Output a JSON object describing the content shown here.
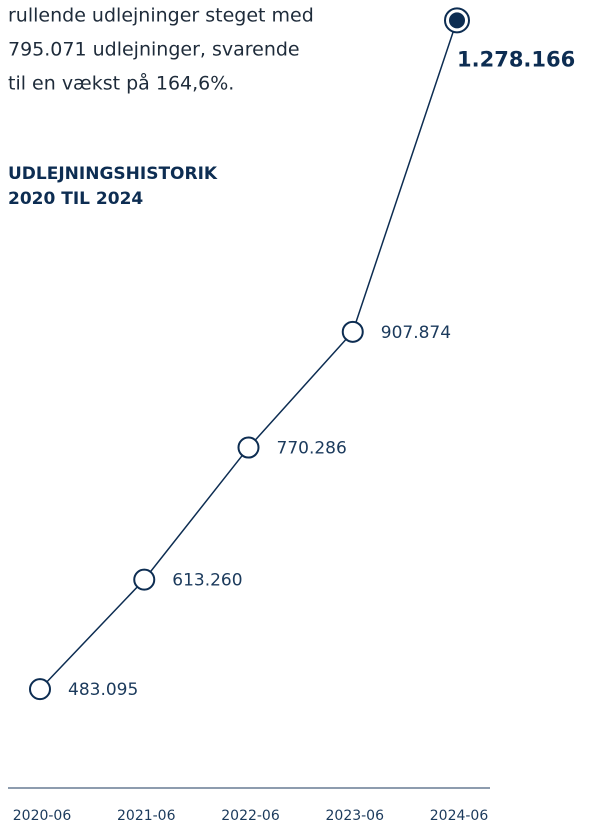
{
  "text": {
    "paragraph": [
      "rullende udlejninger steget med",
      "795.071 udlejninger, svarende",
      "til en vækst på 164,6%."
    ]
  },
  "chart_data": {
    "type": "line",
    "title": [
      "UDLEJNINGSHISTORIK",
      "2020 TIL 2024"
    ],
    "categories": [
      "2020-06",
      "2021-06",
      "2022-06",
      "2023-06",
      "2024-06"
    ],
    "values": [
      483095,
      613260,
      770286,
      907874,
      1278166
    ],
    "value_labels": [
      "483.095",
      "613.260",
      "770.286",
      "907.874",
      "1.278.166"
    ],
    "color": "#0d2d52",
    "ylim": [
      400000,
      1300000
    ]
  }
}
